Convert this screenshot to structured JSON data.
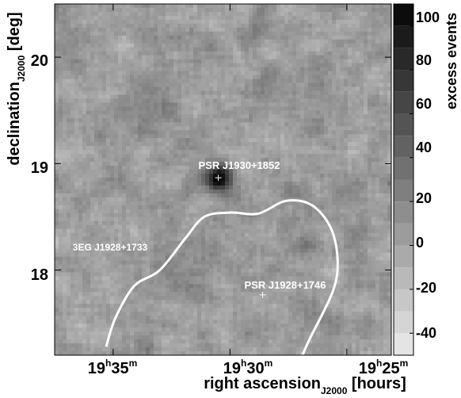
{
  "chart_data": {
    "type": "heatmap",
    "title": "",
    "xlabel": {
      "prefix": "right ascension",
      "subscript": "J2000",
      "unit": " [hours]"
    },
    "ylabel": {
      "prefix": "declination",
      "subscript": "J2000",
      "unit": " [deg]"
    },
    "colorbar": {
      "label": "excess events",
      "range": [
        -50,
        110
      ],
      "ticks": [
        {
          "value": 100,
          "label": "100"
        },
        {
          "value": 80,
          "label": "80"
        },
        {
          "value": 60,
          "label": "60"
        },
        {
          "value": 40,
          "label": "40"
        },
        {
          "value": 20,
          "label": "20"
        },
        {
          "value": 0,
          "label": "0"
        },
        {
          "value": -20,
          "label": "-20"
        },
        {
          "value": -40,
          "label": "-40"
        }
      ],
      "scale": "grayscale, dark = high"
    },
    "xlim_hours": [
      19.625,
      19.385
    ],
    "ylim_deg": [
      17.2,
      20.5
    ],
    "x_ticks": [
      {
        "value": 19.5833,
        "h": "19",
        "m": "35"
      },
      {
        "value": 19.5,
        "h": "19",
        "m": "30"
      },
      {
        "value": 19.4167,
        "h": "19",
        "m": "25"
      }
    ],
    "y_ticks": [
      {
        "value": 20,
        "label": "20"
      },
      {
        "value": 19,
        "label": "19"
      },
      {
        "value": 18,
        "label": "18"
      }
    ],
    "peak": {
      "ra_hours": 19.5083,
      "dec_deg": 18.867,
      "value": 100
    },
    "sources": [
      {
        "name": "PSR J1930+1852",
        "ra_hours": 19.5083,
        "dec_deg": 18.867,
        "marker": "cross"
      },
      {
        "name": "PSR J1928+1746",
        "ra_hours": 19.4767,
        "dec_deg": 17.767,
        "marker": "cross"
      },
      {
        "name": "3EG J1928+1733",
        "marker": "none"
      }
    ],
    "contour": {
      "label_ref": "3EG J1928+1733",
      "color": "#ffffff",
      "points": [
        [
          19.5883,
          17.28
        ],
        [
          19.5817,
          17.55
        ],
        [
          19.5683,
          17.85
        ],
        [
          19.55,
          18.0
        ],
        [
          19.5317,
          18.3
        ],
        [
          19.5183,
          18.5
        ],
        [
          19.5,
          18.54
        ],
        [
          19.48,
          18.53
        ],
        [
          19.46,
          18.65
        ],
        [
          19.4417,
          18.61
        ],
        [
          19.4283,
          18.4
        ],
        [
          19.4233,
          18.1
        ],
        [
          19.4267,
          17.8
        ],
        [
          19.4433,
          17.35
        ],
        [
          19.4483,
          17.2
        ]
      ]
    }
  }
}
